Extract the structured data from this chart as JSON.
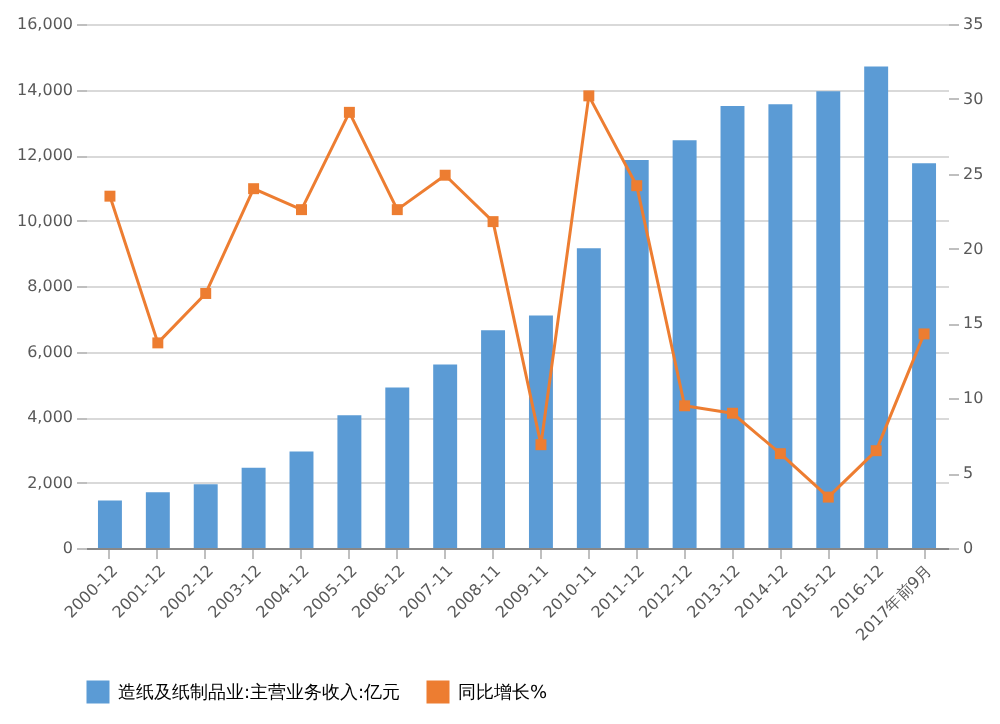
{
  "chart_data": {
    "type": "bar",
    "categories": [
      "2000-12",
      "2001-12",
      "2002-12",
      "2003-12",
      "2004-12",
      "2005-12",
      "2006-12",
      "2007-11",
      "2008-11",
      "2009-11",
      "2010-11",
      "2011-12",
      "2012-12",
      "2013-12",
      "2014-12",
      "2015-12",
      "2016-12",
      "2017年前9月"
    ],
    "series": [
      {
        "name": "造纸及纸制品业:主营业务收入:亿元",
        "color": "#5b9bd5",
        "values": [
          1450,
          1700,
          1950,
          2450,
          2950,
          4050,
          4900,
          5600,
          6650,
          7100,
          9150,
          11850,
          12450,
          13500,
          13550,
          13950,
          14700,
          11750
        ]
      },
      {
        "name": "同比增长%",
        "type": "line",
        "axis": "y2",
        "color": "#ed7d31",
        "marker": "square",
        "values": [
          23.5,
          13.7,
          17.0,
          24.0,
          22.6,
          29.1,
          22.6,
          24.9,
          21.8,
          6.9,
          30.2,
          24.2,
          9.5,
          9.0,
          6.3,
          3.4,
          6.5,
          14.3
        ]
      }
    ],
    "ylim": [
      0,
      16000
    ],
    "yticks": [
      0,
      {
        "value": 2000,
        "label": "2,000"
      },
      {
        "value": 4000,
        "label": "4,000"
      },
      {
        "value": 6000,
        "label": "6,000"
      },
      {
        "value": 8000,
        "label": "8,000"
      },
      {
        "value": 10000,
        "label": "10,000"
      },
      {
        "value": 12000,
        "label": "12,000"
      },
      {
        "value": 14000,
        "label": "14,000"
      },
      {
        "value": 16000,
        "label": "16,000"
      }
    ],
    "y2lim": [
      0,
      35
    ],
    "y2ticks": [
      0,
      5,
      10,
      15,
      20,
      25,
      30,
      35
    ],
    "grid": "y",
    "legend": "bottom"
  }
}
